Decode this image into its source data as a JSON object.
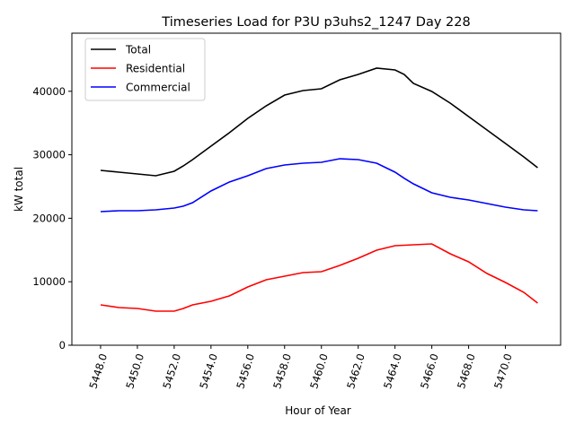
{
  "chart_data": {
    "type": "line",
    "title": "Timeseries Load for P3U p3uhs2_1247  Day 228",
    "xlabel": "Hour of Year",
    "ylabel": "kW total",
    "xlim": [
      5446.44,
      5473.0
    ],
    "ylim": [
      0,
      49150
    ],
    "xticks": [
      5448,
      5450,
      5452,
      5454,
      5456,
      5458,
      5460,
      5462,
      5464,
      5466,
      5468,
      5470
    ],
    "xtick_labels": [
      "5448.0",
      "5450.0",
      "5452.0",
      "5454.0",
      "5456.0",
      "5458.0",
      "5460.0",
      "5462.0",
      "5464.0",
      "5466.0",
      "5468.0",
      "5470.0"
    ],
    "yticks": [
      0,
      10000,
      20000,
      30000,
      40000
    ],
    "ytick_labels": [
      "0",
      "10000",
      "20000",
      "30000",
      "40000"
    ],
    "legend_position": "top-left",
    "x": [
      5448,
      5449,
      5450,
      5451,
      5452,
      5452.5,
      5453,
      5454,
      5455,
      5456,
      5457,
      5458,
      5459,
      5460,
      5461,
      5462,
      5463,
      5464,
      5464.5,
      5465,
      5466,
      5467,
      5468,
      5469,
      5470,
      5471,
      5471.75
    ],
    "series": [
      {
        "name": "Total",
        "color": "#000000",
        "values": [
          27540,
          27260,
          26980,
          26700,
          27400,
          28250,
          29240,
          31360,
          33470,
          35730,
          37710,
          39400,
          40110,
          40400,
          41800,
          42650,
          43640,
          43360,
          42650,
          41240,
          39970,
          38130,
          36020,
          33900,
          31780,
          29660,
          27970
        ]
      },
      {
        "name": "Residential",
        "color": "#ff0000",
        "values": [
          6360,
          5930,
          5790,
          5370,
          5370,
          5790,
          6360,
          6920,
          7770,
          9180,
          10310,
          10880,
          11440,
          11580,
          12570,
          13700,
          14970,
          15680,
          15750,
          15820,
          15960,
          14410,
          13140,
          11300,
          9890,
          8330,
          6640
        ]
      },
      {
        "name": "Commercial",
        "color": "#0000ff",
        "values": [
          21050,
          21190,
          21190,
          21330,
          21610,
          21900,
          22460,
          24290,
          25710,
          26690,
          27820,
          28390,
          28670,
          28810,
          29380,
          29240,
          28670,
          27260,
          26300,
          25420,
          24010,
          23300,
          22880,
          22320,
          21750,
          21330,
          21190
        ]
      }
    ]
  }
}
